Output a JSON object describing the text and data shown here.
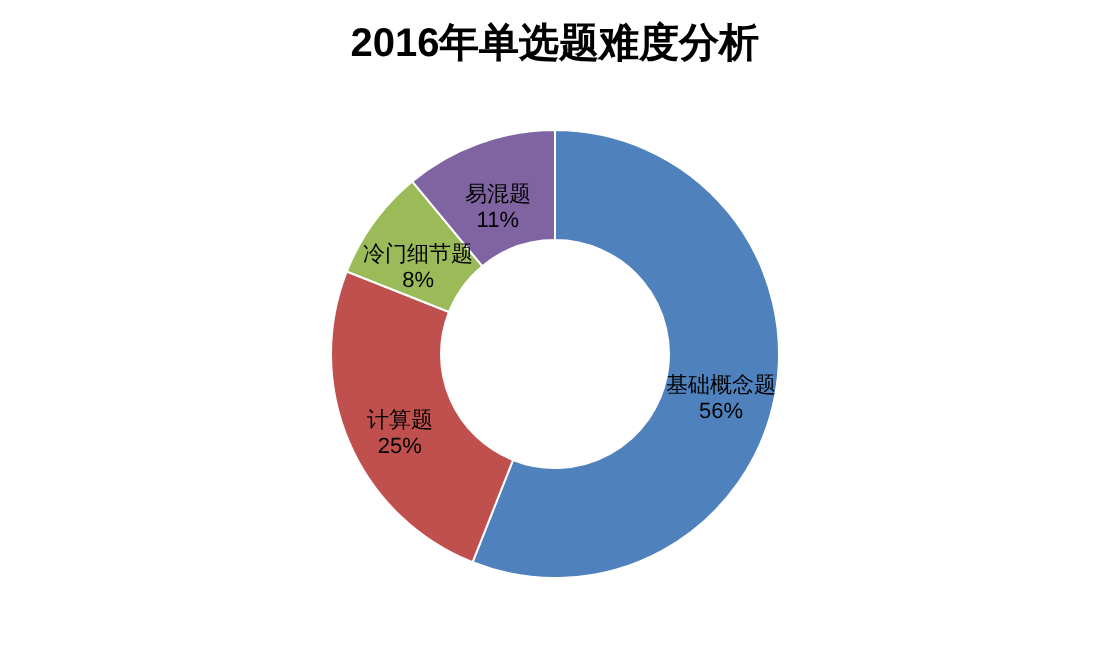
{
  "chart_data": {
    "type": "donut",
    "title": "2016年单选题难度分析",
    "categories": [
      "基础概念题",
      "计算题",
      "冷门细节题",
      "易混题"
    ],
    "values": [
      56,
      25,
      8,
      11
    ],
    "colors": [
      "#4f81bd",
      "#c0504d",
      "#9bbb59",
      "#8064a2"
    ],
    "value_labels": [
      "56%",
      "25%",
      "8%",
      "11%"
    ],
    "legend": false
  }
}
